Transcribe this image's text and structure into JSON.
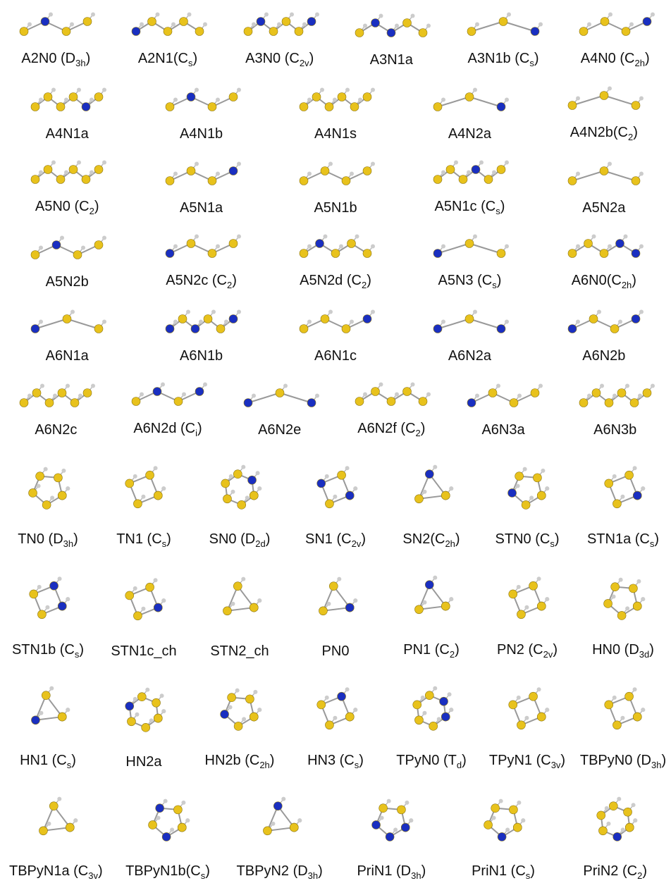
{
  "rows": [
    [
      {
        "text": "A2N0 (D",
        "sub": "3h",
        "end": ")"
      },
      {
        "text": "A2N1(C",
        "sub": "s",
        "end": ")"
      },
      {
        "text": "A3N0 (C",
        "sub": "2v",
        "end": ")"
      },
      {
        "text": "A3N1a"
      },
      {
        "text": "A3N1b (C",
        "sub": "s",
        "end": ")"
      },
      {
        "text": "A4N0 (C",
        "sub": "2h",
        "end": ")"
      }
    ],
    [
      {
        "text": "A4N1a"
      },
      {
        "text": "A4N1b"
      },
      {
        "text": "A4N1s"
      },
      {
        "text": "A4N2a"
      },
      {
        "text": "A4N2b(C",
        "sub": "2",
        "end": ")"
      }
    ],
    [
      {
        "text": "A5N0 (C",
        "sub": "2",
        "end": ")"
      },
      {
        "text": "A5N1a"
      },
      {
        "text": "A5N1b"
      },
      {
        "text": "A5N1c (C",
        "sub": "s",
        "end": ")"
      },
      {
        "text": "A5N2a"
      }
    ],
    [
      {
        "text": "A5N2b"
      },
      {
        "text": "A5N2c (C",
        "sub": "2",
        "end": ")"
      },
      {
        "text": "A5N2d (C",
        "sub": "2",
        "end": ")"
      },
      {
        "text": "A5N3 (C",
        "sub": "s",
        "end": ")"
      },
      {
        "text": "A6N0(C",
        "sub": "2h",
        "end": ")"
      }
    ],
    [
      {
        "text": "A6N1a"
      },
      {
        "text": "A6N1b"
      },
      {
        "text": "A6N1c"
      },
      {
        "text": "A6N2a"
      },
      {
        "text": "A6N2b"
      }
    ],
    [
      {
        "text": "A6N2c"
      },
      {
        "text": "A6N2d (C",
        "sub": "i",
        "end": ")"
      },
      {
        "text": "A6N2e"
      },
      {
        "text": "A6N2f (C",
        "sub": "2",
        "end": ")"
      },
      {
        "text": "A6N3a"
      },
      {
        "text": "A6N3b"
      }
    ],
    [
      {
        "text": "TN0 (D",
        "sub": "3h",
        "end": ")"
      },
      {
        "text": "TN1 (C",
        "sub": "s",
        "end": ")"
      },
      {
        "text": "SN0 (D",
        "sub": "2d",
        "end": ")"
      },
      {
        "text": "SN1 (C",
        "sub": "2v",
        "end": ")"
      },
      {
        "text": "SN2(C",
        "sub": "2h",
        "end": ")"
      },
      {
        "text": "STN0 (C",
        "sub": "s",
        "end": ")"
      },
      {
        "text": "STN1a (C",
        "sub": "s",
        "end": ")"
      }
    ],
    [
      {
        "text": "STN1b (C",
        "sub": "s",
        "end": ")"
      },
      {
        "text": "STN1c_ch"
      },
      {
        "text": "STN2_ch"
      },
      {
        "text": "PN0"
      },
      {
        "text": "PN1 (C",
        "sub": "2",
        "end": ")"
      },
      {
        "text": "PN2 (C",
        "sub": "2v",
        "end": ")"
      },
      {
        "text": "HN0 (D",
        "sub": "3d",
        "end": ")"
      }
    ],
    [
      {
        "text": "HN1 (C",
        "sub": "s",
        "end": ")"
      },
      {
        "text": "HN2a"
      },
      {
        "text": "HN2b (C",
        "sub": "2h",
        "end": ")"
      },
      {
        "text": "HN3 (C",
        "sub": "s",
        "end": ")"
      },
      {
        "text": "TPyN0 (T",
        "sub": "d",
        "end": ")"
      },
      {
        "text": "TPyN1 (C",
        "sub": "3v",
        "end": ")"
      },
      {
        "text": "TBPyN0 (D",
        "sub": "3h",
        "end": ")"
      }
    ],
    [
      {
        "text": "TBPyN1a (C",
        "sub": "3v",
        "end": ")"
      },
      {
        "text": "TBPyN1b(C",
        "sub": "s",
        "end": ")"
      },
      {
        "text": "TBPyN2 (D",
        "sub": "3h",
        "end": ")"
      },
      {
        "text": "PriN1 (D",
        "sub": "3h",
        "end": ")"
      },
      {
        "text": "PriN1 (C",
        "sub": "s",
        "end": ")"
      },
      {
        "text": "PriN2 (C",
        "sub": "2",
        "end": ")"
      }
    ]
  ]
}
